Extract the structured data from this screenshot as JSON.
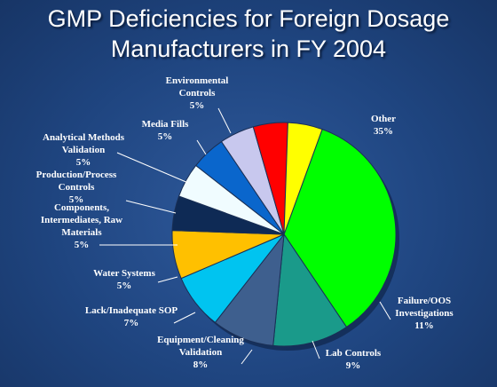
{
  "title_lines": [
    "GMP Deficiencies for Foreign Dosage",
    "Manufacturers in FY 2004"
  ],
  "chart_data": {
    "type": "pie",
    "title": "GMP Deficiencies for Foreign Dosage Manufacturers in FY 2004",
    "slices": [
      {
        "label_lines": [
          "Other"
        ],
        "value": 35,
        "value_label": "35%",
        "color": "#00ff00"
      },
      {
        "label_lines": [
          "Failure/OOS",
          "Investigations"
        ],
        "value": 11,
        "value_label": "11%",
        "color": "#1a9a8a"
      },
      {
        "label_lines": [
          "Lab Controls"
        ],
        "value": 9,
        "value_label": "9%",
        "color": "#3e5f8e"
      },
      {
        "label_lines": [
          "Equipment/Cleaning",
          "Validation"
        ],
        "value": 8,
        "value_label": "8%",
        "color": "#00c4f0"
      },
      {
        "label_lines": [
          "Lack/Inadequate SOP"
        ],
        "value": 7,
        "value_label": "7%",
        "color": "#ffc000"
      },
      {
        "label_lines": [
          "Water Systems"
        ],
        "value": 5,
        "value_label": "5%",
        "color": "#0e2a55"
      },
      {
        "label_lines": [
          "Components,",
          "Intermediates, Raw",
          "Materials"
        ],
        "value": 5,
        "value_label": "5%",
        "color": "#f0fcff"
      },
      {
        "label_lines": [
          "Production/Process",
          "Controls"
        ],
        "value": 5,
        "value_label": "5%",
        "color": "#0a66cc"
      },
      {
        "label_lines": [
          "Analytical Methods",
          "Validation"
        ],
        "value": 5,
        "value_label": "5%",
        "color": "#c8c8ee"
      },
      {
        "label_lines": [
          "Media Fills"
        ],
        "value": 5,
        "value_label": "5%",
        "color": "#ff0000"
      },
      {
        "label_lines": [
          "Environmental",
          "Controls"
        ],
        "value": 5,
        "value_label": "5%",
        "color": "#ffff00"
      }
    ],
    "start_angle_deg": -70,
    "direction": "clockwise"
  }
}
